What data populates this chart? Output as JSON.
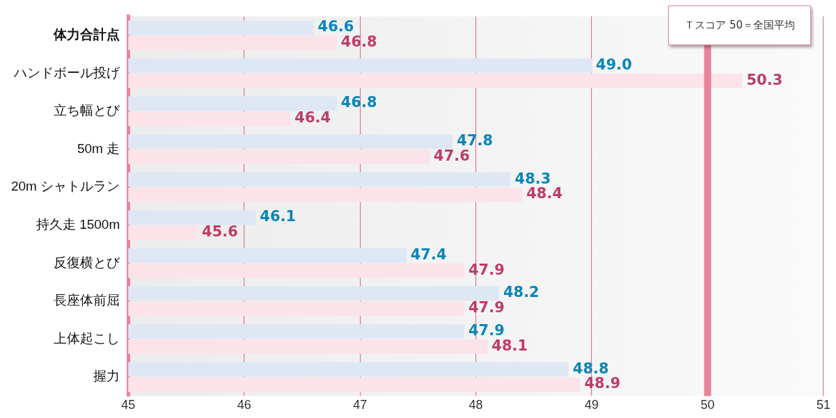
{
  "chart_data": {
    "type": "bar",
    "orientation": "horizontal",
    "categories": [
      "体力合計点",
      "ハンドボール投げ",
      "立ち幅とび",
      "50m 走",
      "20m シャトルラン",
      "持久走 1500m",
      "反復横とび",
      "長座体前屈",
      "上体起こし",
      "握力"
    ],
    "series": [
      {
        "color": "#dfe7f4",
        "values": [
          46.6,
          49.0,
          46.8,
          47.8,
          48.3,
          46.1,
          47.4,
          48.2,
          47.9,
          48.8
        ],
        "value_labels": [
          "46.6",
          "49.0",
          "46.8",
          "47.8",
          "48.3",
          "46.1",
          "47.4",
          "48.2",
          "47.9",
          "48.8"
        ]
      },
      {
        "color": "#fbe3e9",
        "values": [
          46.8,
          50.3,
          46.4,
          47.6,
          48.4,
          45.6,
          47.9,
          47.9,
          48.1,
          48.9
        ],
        "value_labels": [
          "46.8",
          "50.3",
          "46.4",
          "47.6",
          "48.4",
          "45.6",
          "47.9",
          "47.9",
          "48.1",
          "48.9"
        ]
      }
    ],
    "xlim": [
      45,
      51
    ],
    "xticks": [
      45,
      46,
      47,
      48,
      49,
      50,
      51
    ],
    "grid": "x",
    "ref_lines": [
      {
        "axis": "x",
        "value": 50,
        "color": "#e8849a"
      }
    ],
    "annotations": [
      "Ｔスコア 50＝全国平均"
    ]
  }
}
